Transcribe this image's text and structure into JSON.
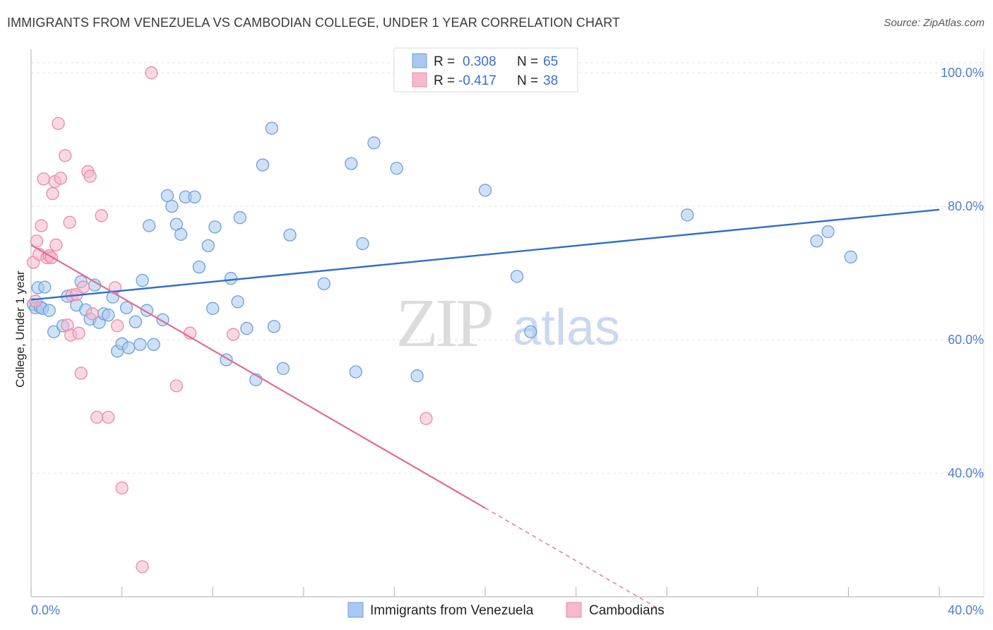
{
  "chart_data": {
    "type": "scatter",
    "title": "IMMIGRANTS FROM VENEZUELA VS CAMBODIAN COLLEGE, UNDER 1 YEAR CORRELATION CHART",
    "source": "Source: ZipAtlas.com",
    "watermark": {
      "zip": "ZIP",
      "atlas": "atlas"
    },
    "xlabel": "",
    "ylabel": "College, Under 1 year",
    "xlim": [
      0,
      40
    ],
    "ylim": [
      21.5,
      103.5
    ],
    "x_tick_labels": [
      "0.0%",
      "40.0%"
    ],
    "y_ticks": [
      {
        "value": 40,
        "label": "40.0%"
      },
      {
        "value": 60,
        "label": "60.0%"
      },
      {
        "value": 80,
        "label": "80.0%"
      },
      {
        "value": 100,
        "label": "100.0%"
      }
    ],
    "grid": true,
    "legend_position": "top-center",
    "stats_legend": [
      {
        "r_label": "R = ",
        "r_value": "0.308",
        "n_label": "N = ",
        "n_value": "65",
        "color": "#a8c8f0"
      },
      {
        "r_label": "R = ",
        "r_value": "-0.417",
        "n_label": "N = ",
        "n_value": "38",
        "color": "#f5b8cc"
      }
    ],
    "series": [
      {
        "name": "Immigrants from Venezuela",
        "color": "#a8c8f0",
        "stroke": "#6f9fd8",
        "trend": {
          "x0": 0,
          "y0": 66.0,
          "x1": 40,
          "y1": 79.5,
          "color": "#2d6fcc",
          "dashed_after": null
        },
        "points": [
          [
            0.1,
            65.3
          ],
          [
            0.2,
            64.8
          ],
          [
            0.3,
            67.8
          ],
          [
            0.4,
            64.9
          ],
          [
            0.5,
            64.7
          ],
          [
            0.6,
            67.9
          ],
          [
            0.8,
            64.4
          ],
          [
            1.0,
            61.2
          ],
          [
            1.4,
            62.1
          ],
          [
            1.6,
            66.5
          ],
          [
            2.0,
            65.2
          ],
          [
            2.2,
            68.7
          ],
          [
            2.4,
            64.5
          ],
          [
            2.6,
            63.1
          ],
          [
            2.8,
            68.2
          ],
          [
            3.0,
            62.6
          ],
          [
            3.2,
            63.9
          ],
          [
            3.4,
            63.7
          ],
          [
            3.6,
            66.4
          ],
          [
            3.8,
            58.3
          ],
          [
            4.0,
            59.4
          ],
          [
            4.2,
            64.8
          ],
          [
            4.3,
            58.8
          ],
          [
            4.6,
            62.7
          ],
          [
            4.8,
            59.3
          ],
          [
            4.9,
            68.9
          ],
          [
            5.1,
            64.4
          ],
          [
            5.2,
            77.1
          ],
          [
            5.4,
            59.3
          ],
          [
            5.8,
            63.0
          ],
          [
            6.0,
            81.6
          ],
          [
            6.2,
            80.0
          ],
          [
            6.4,
            77.3
          ],
          [
            6.6,
            75.8
          ],
          [
            6.8,
            81.4
          ],
          [
            7.2,
            81.4
          ],
          [
            7.4,
            70.9
          ],
          [
            7.8,
            74.1
          ],
          [
            8.0,
            64.7
          ],
          [
            8.1,
            76.9
          ],
          [
            8.6,
            57.0
          ],
          [
            8.8,
            69.2
          ],
          [
            9.1,
            65.7
          ],
          [
            9.2,
            78.3
          ],
          [
            9.5,
            61.7
          ],
          [
            9.9,
            54.0
          ],
          [
            10.2,
            86.2
          ],
          [
            10.6,
            91.7
          ],
          [
            10.7,
            62.0
          ],
          [
            11.1,
            55.7
          ],
          [
            11.4,
            75.7
          ],
          [
            12.9,
            68.4
          ],
          [
            14.1,
            86.4
          ],
          [
            14.3,
            55.2
          ],
          [
            14.6,
            74.4
          ],
          [
            15.1,
            89.5
          ],
          [
            16.1,
            85.7
          ],
          [
            17.0,
            54.6
          ],
          [
            20.0,
            82.4
          ],
          [
            21.4,
            69.5
          ],
          [
            22.0,
            61.2
          ],
          [
            28.9,
            78.7
          ],
          [
            34.6,
            74.8
          ],
          [
            35.1,
            76.2
          ],
          [
            36.1,
            72.4
          ]
        ]
      },
      {
        "name": "Cambodians",
        "color": "#f5b8cc",
        "stroke": "#e88aa8",
        "trend": {
          "x0": 0,
          "y0": 74.2,
          "x1": 20.0,
          "y1": 34.8,
          "dash_to_x": 28.0,
          "dash_to_y": 19.0,
          "color": "#e06a95"
        },
        "points": [
          [
            0.1,
            71.6
          ],
          [
            0.2,
            65.8
          ],
          [
            0.25,
            74.8
          ],
          [
            0.35,
            72.8
          ],
          [
            0.45,
            77.1
          ],
          [
            0.55,
            84.1
          ],
          [
            0.7,
            72.3
          ],
          [
            0.8,
            72.6
          ],
          [
            0.9,
            72.3
          ],
          [
            0.95,
            81.9
          ],
          [
            1.05,
            83.7
          ],
          [
            1.1,
            74.2
          ],
          [
            1.2,
            92.4
          ],
          [
            1.3,
            84.2
          ],
          [
            1.5,
            87.6
          ],
          [
            1.6,
            62.2
          ],
          [
            1.7,
            77.6
          ],
          [
            1.75,
            60.7
          ],
          [
            1.8,
            66.7
          ],
          [
            2.0,
            66.8
          ],
          [
            2.1,
            61.0
          ],
          [
            2.2,
            55.0
          ],
          [
            2.3,
            67.9
          ],
          [
            2.5,
            85.2
          ],
          [
            2.6,
            84.5
          ],
          [
            2.7,
            63.9
          ],
          [
            2.9,
            48.4
          ],
          [
            3.1,
            78.6
          ],
          [
            3.4,
            48.4
          ],
          [
            3.7,
            67.8
          ],
          [
            3.8,
            62.1
          ],
          [
            4.0,
            37.8
          ],
          [
            4.9,
            26.0
          ],
          [
            5.3,
            100.0
          ],
          [
            6.4,
            53.1
          ],
          [
            7.0,
            61.0
          ],
          [
            8.9,
            60.8
          ],
          [
            17.4,
            48.2
          ]
        ]
      }
    ]
  }
}
